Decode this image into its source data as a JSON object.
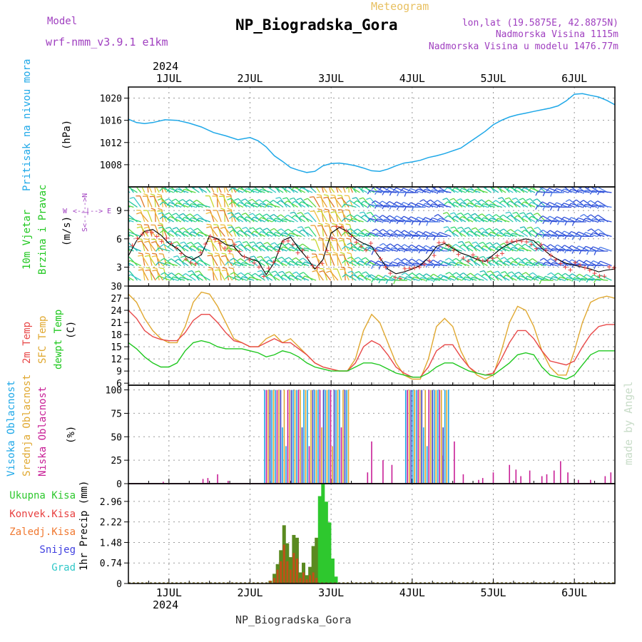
{
  "header": {
    "model_label": "Model",
    "model_name": "wrf-nmm_v3.9.1 e1km",
    "subtitle": "Meteogram",
    "title": "NP_Biogradska_Gora",
    "coords": "lon,lat (19.5875E, 42.8875N)",
    "elevation": "Nadmorska Visina 1115m",
    "model_elevation": "Nadmorska Visina u modelu 1476.77m",
    "footer": "NP_Biogradska_Gora",
    "watermark": "made by Angel",
    "year": "2024"
  },
  "colors": {
    "pressure": "#1ea8e8",
    "t2m": "#e84848",
    "sfc": "#e0a830",
    "dew": "#20c820",
    "high_cloud": "#1ea8e8",
    "mid_cloud": "#e0a830",
    "low_cloud": "#c81e96",
    "total_precip": "#2ec82e",
    "conv_precip": "#e84040",
    "frozen_precip": "#f07830",
    "snow": "#4040e0",
    "hail": "#30c8c8"
  },
  "chart_data": [
    {
      "type": "line",
      "panel": "pressure",
      "ylabel": "Pritisak na nivou mora",
      "unit": "(hPa)",
      "ylim": [
        1004,
        1022
      ],
      "yticks": [
        1008,
        1012,
        1016,
        1020
      ],
      "xlim": [
        0.5,
        6.5
      ],
      "xticks": [
        "1JUL",
        "2JUL",
        "3JUL",
        "4JUL",
        "5JUL",
        "6JUL"
      ],
      "grid": true,
      "x": [
        0.5,
        0.6,
        0.7,
        0.8,
        0.95,
        1.1,
        1.25,
        1.4,
        1.55,
        1.7,
        1.85,
        2.0,
        2.1,
        2.2,
        2.3,
        2.4,
        2.5,
        2.6,
        2.7,
        2.8,
        2.9,
        3.0,
        3.1,
        3.2,
        3.3,
        3.4,
        3.5,
        3.6,
        3.7,
        3.8,
        3.9,
        4.0,
        4.1,
        4.2,
        4.3,
        4.4,
        4.5,
        4.6,
        4.7,
        4.8,
        4.9,
        5.0,
        5.1,
        5.2,
        5.3,
        5.4,
        5.5,
        5.6,
        5.7,
        5.8,
        5.9,
        6.0,
        6.1,
        6.2,
        6.3,
        6.4,
        6.5
      ],
      "values": [
        1016.2,
        1015.6,
        1015.4,
        1015.6,
        1016.1,
        1016.0,
        1015.5,
        1014.8,
        1013.8,
        1013.2,
        1012.5,
        1012.9,
        1012.3,
        1011.2,
        1009.6,
        1008.6,
        1007.5,
        1007.0,
        1006.6,
        1006.8,
        1007.8,
        1008.2,
        1008.3,
        1008.1,
        1007.8,
        1007.4,
        1006.9,
        1006.8,
        1007.2,
        1007.8,
        1008.3,
        1008.5,
        1008.8,
        1009.3,
        1009.6,
        1010.0,
        1010.5,
        1011.0,
        1012.0,
        1013.0,
        1014.0,
        1015.2,
        1016.0,
        1016.6,
        1017.0,
        1017.3,
        1017.6,
        1017.9,
        1018.2,
        1018.6,
        1019.5,
        1020.7,
        1020.8,
        1020.5,
        1020.2,
        1019.6,
        1018.8
      ]
    },
    {
      "type": "line",
      "panel": "wind",
      "ylabel": "10m Vjetar Brzina i Pravac",
      "unit": "(m/s)",
      "compass": [
        "N",
        "S",
        "W",
        "E"
      ],
      "ylim": [
        1,
        11.5
      ],
      "yticks": [
        3,
        6,
        9
      ],
      "xlim": [
        0.5,
        6.5
      ],
      "grid": true,
      "x": [
        0.5,
        0.6,
        0.7,
        0.8,
        0.9,
        1.0,
        1.1,
        1.2,
        1.3,
        1.4,
        1.5,
        1.6,
        1.7,
        1.8,
        1.9,
        2.0,
        2.1,
        2.2,
        2.3,
        2.4,
        2.5,
        2.6,
        2.7,
        2.8,
        2.9,
        3.0,
        3.1,
        3.2,
        3.3,
        3.4,
        3.5,
        3.6,
        3.7,
        3.8,
        3.9,
        4.0,
        4.1,
        4.2,
        4.3,
        4.4,
        4.5,
        4.6,
        4.7,
        4.8,
        4.9,
        5.0,
        5.1,
        5.2,
        5.3,
        5.4,
        5.5,
        5.6,
        5.7,
        5.8,
        5.9,
        6.0,
        6.1,
        6.2,
        6.3,
        6.4,
        6.5
      ],
      "values": [
        4.2,
        5.8,
        6.8,
        7.0,
        6.4,
        5.5,
        5.0,
        4.2,
        3.8,
        4.3,
        6.3,
        6.0,
        5.4,
        5.2,
        4.2,
        3.9,
        3.6,
        2.2,
        3.5,
        5.8,
        6.2,
        5.0,
        4.0,
        2.8,
        3.8,
        6.6,
        7.2,
        6.8,
        6.0,
        5.5,
        5.2,
        4.0,
        2.8,
        2.3,
        2.5,
        2.8,
        3.2,
        4.0,
        5.2,
        5.5,
        5.0,
        4.5,
        4.2,
        3.8,
        3.6,
        4.3,
        5.0,
        5.5,
        5.8,
        6.0,
        5.8,
        5.0,
        4.3,
        3.8,
        3.4,
        3.2,
        3.0,
        2.8,
        2.5,
        2.7,
        2.8
      ]
    },
    {
      "type": "line",
      "panel": "temperature",
      "ylabel": "2m Temp / SFC Temp / dewpt Temp",
      "series_labels": [
        "2m Temp",
        "SFC Temp",
        "dewpt Temp"
      ],
      "unit": "(C)",
      "ylim": [
        5.5,
        30
      ],
      "yticks": [
        6,
        9,
        12,
        15,
        18,
        21,
        24,
        27,
        30
      ],
      "xlim": [
        0.5,
        6.5
      ],
      "grid": true,
      "x": [
        0.5,
        0.6,
        0.7,
        0.8,
        0.9,
        1.0,
        1.1,
        1.2,
        1.3,
        1.4,
        1.5,
        1.6,
        1.7,
        1.8,
        1.9,
        2.0,
        2.1,
        2.2,
        2.3,
        2.4,
        2.5,
        2.6,
        2.7,
        2.8,
        2.9,
        3.0,
        3.1,
        3.2,
        3.3,
        3.4,
        3.5,
        3.6,
        3.7,
        3.8,
        3.9,
        4.0,
        4.1,
        4.2,
        4.3,
        4.4,
        4.5,
        4.6,
        4.7,
        4.8,
        4.9,
        5.0,
        5.1,
        5.2,
        5.3,
        5.4,
        5.5,
        5.6,
        5.7,
        5.8,
        5.9,
        6.0,
        6.1,
        6.2,
        6.3,
        6.4,
        6.5
      ],
      "series": [
        {
          "key": "sfc",
          "values": [
            28,
            26,
            22,
            19,
            17,
            16,
            16,
            20,
            26,
            28.5,
            28,
            25,
            21,
            17,
            16,
            15,
            15,
            17,
            18,
            16,
            17,
            15,
            13,
            11,
            10,
            9.5,
            9,
            9,
            12,
            19,
            23,
            21,
            16,
            11,
            8,
            7,
            7,
            12,
            20,
            22,
            20,
            14,
            10,
            8,
            7,
            8,
            14,
            21,
            25,
            24,
            20,
            14,
            10,
            8,
            8,
            14,
            21,
            26,
            27,
            27.5,
            27
          ]
        },
        {
          "key": "t2m",
          "values": [
            24,
            22,
            19,
            17.5,
            16.8,
            16.5,
            16.5,
            18.5,
            21.5,
            23,
            23,
            21,
            18.5,
            16.5,
            16,
            15,
            15,
            16,
            17,
            16,
            16,
            14.5,
            13,
            11,
            10,
            9.5,
            9,
            9,
            11,
            15,
            16.5,
            15.5,
            13,
            10,
            8.5,
            7.5,
            7.5,
            10,
            14,
            15.5,
            15.5,
            12.5,
            10,
            8.5,
            8,
            8.5,
            12,
            16,
            19,
            19,
            17,
            14,
            11.5,
            11,
            10.5,
            11.5,
            15,
            18,
            20,
            20.5,
            20.5
          ]
        },
        {
          "key": "dew",
          "values": [
            16,
            14.5,
            12.5,
            11,
            10,
            10,
            11,
            14,
            16,
            16.5,
            16,
            15,
            14.5,
            14.5,
            14.5,
            14,
            13.5,
            12.5,
            13,
            14,
            13.5,
            12.5,
            11,
            10,
            9.5,
            9,
            9,
            9,
            10,
            11,
            11,
            10.5,
            9.5,
            8.5,
            8,
            7.5,
            7.5,
            8.5,
            10,
            11,
            11,
            10,
            9,
            8.5,
            8,
            8,
            9.5,
            11,
            13,
            13.5,
            13,
            10,
            8,
            7.5,
            7,
            8,
            10.5,
            13,
            14,
            14,
            14
          ]
        }
      ]
    },
    {
      "type": "bar",
      "panel": "clouds",
      "ylabel": "Visoka Oblacnost / Srednja Oblacnost / Niska Oblacnost",
      "series_labels": [
        "Visoka Oblacnost",
        "Srednja Oblacnost",
        "Niska Oblacnost"
      ],
      "unit": "(%)",
      "ylim": [
        0,
        105
      ],
      "yticks": [
        0,
        25,
        50,
        75,
        100
      ],
      "xlim": [
        0.5,
        6.5
      ],
      "grid": true,
      "low_spikes": [
        [
          0.93,
          2
        ],
        [
          1.42,
          5
        ],
        [
          1.48,
          6
        ],
        [
          1.6,
          10
        ],
        [
          1.73,
          3
        ],
        [
          3.45,
          12
        ],
        [
          3.5,
          45
        ],
        [
          3.64,
          25
        ],
        [
          3.75,
          20
        ],
        [
          4.38,
          30
        ],
        [
          4.52,
          45
        ],
        [
          4.63,
          10
        ],
        [
          4.82,
          4
        ],
        [
          4.87,
          6
        ],
        [
          5.0,
          12
        ],
        [
          5.2,
          20
        ],
        [
          5.28,
          15
        ],
        [
          5.34,
          8
        ],
        [
          5.45,
          14
        ],
        [
          5.6,
          8
        ],
        [
          5.66,
          10
        ],
        [
          5.75,
          14
        ],
        [
          5.83,
          24
        ],
        [
          5.92,
          12
        ],
        [
          6.05,
          4
        ],
        [
          6.2,
          4
        ],
        [
          6.38,
          8
        ],
        [
          6.45,
          12
        ]
      ],
      "dense_ranges": [
        [
          2.18,
          3.23
        ],
        [
          3.92,
          4.47
        ]
      ]
    },
    {
      "type": "bar",
      "panel": "precip",
      "ylabel": "1hr Precip",
      "unit": "(mm)",
      "series_labels": [
        "Ukupna Kisa",
        "Konvek.Kisa",
        "Zaledj.Kisa",
        "Snijeg",
        "Grad"
      ],
      "ylim": [
        0,
        3.6
      ],
      "yticks": [
        0,
        0.74,
        1.48,
        2.22,
        2.96
      ],
      "xlim": [
        0.5,
        6.5
      ],
      "xticks": [
        "1JUL",
        "2JUL",
        "3JUL",
        "4JUL",
        "5JUL",
        "6JUL"
      ],
      "grid": true,
      "x": [
        2.25,
        2.3,
        2.34,
        2.38,
        2.42,
        2.46,
        2.5,
        2.54,
        2.58,
        2.62,
        2.66,
        2.7,
        2.74,
        2.78,
        2.82,
        2.86,
        2.9,
        2.94,
        2.98,
        3.02,
        3.06
      ],
      "values": [
        0.1,
        0.35,
        0.7,
        1.2,
        2.1,
        1.45,
        0.95,
        1.75,
        1.65,
        0.4,
        0.75,
        0.3,
        0.6,
        1.35,
        1.65,
        3.15,
        3.6,
        2.95,
        2.2,
        0.9,
        0.25
      ],
      "conv": [
        0.1,
        0.2,
        0.5,
        0.8,
        1.4,
        0.8,
        0.5,
        1.1,
        0.9,
        0.2,
        0.4,
        0.15,
        0.3,
        0.4,
        0.2,
        0,
        0,
        0,
        0,
        0,
        0
      ]
    }
  ]
}
